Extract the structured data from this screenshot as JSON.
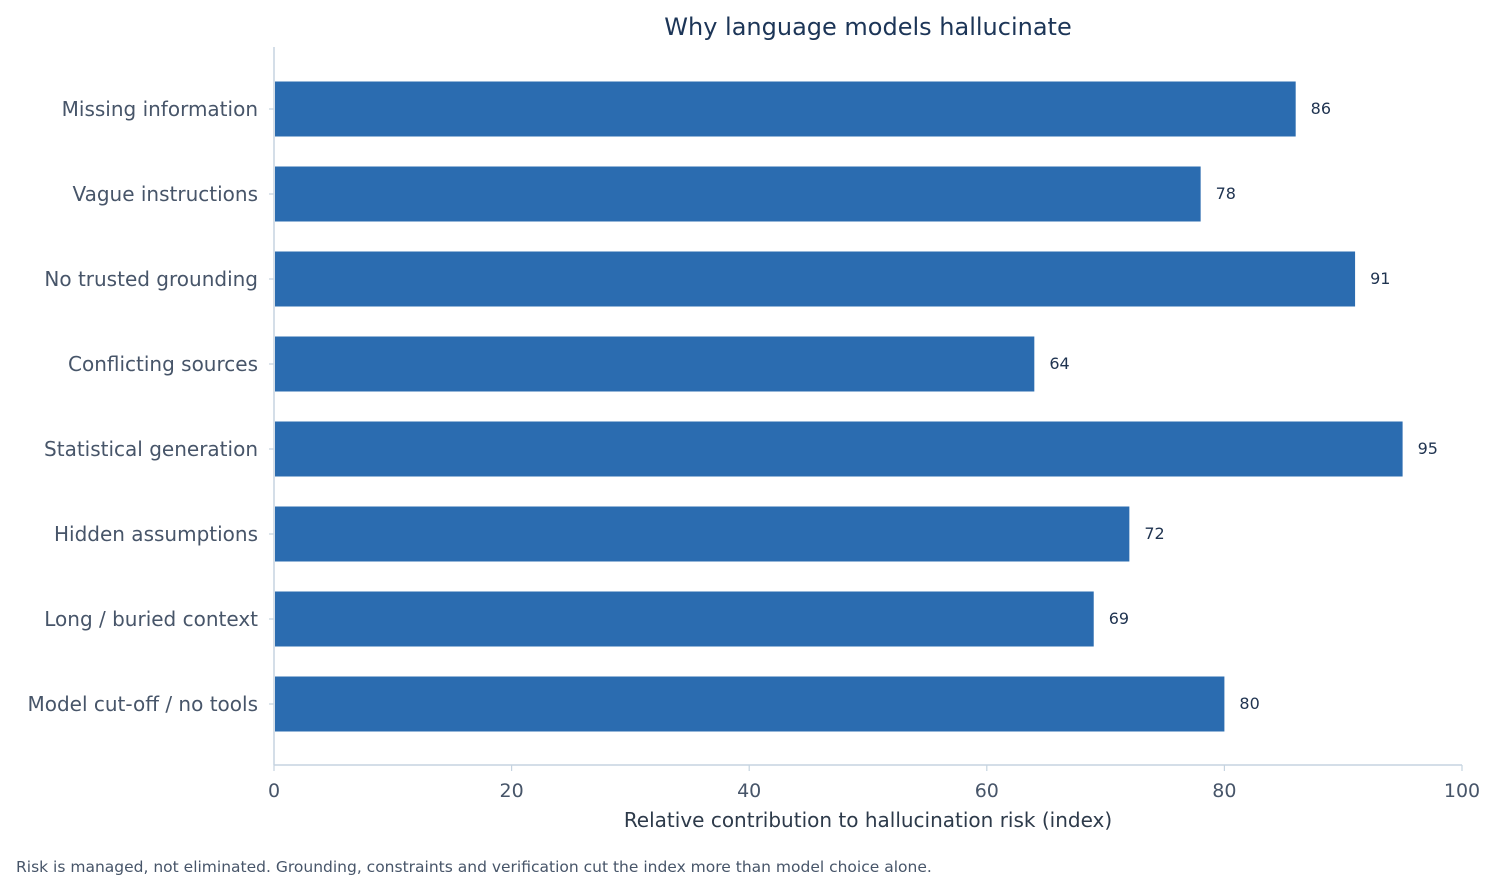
{
  "chart_data": {
    "type": "bar",
    "orientation": "horizontal",
    "title": "Why language models hallucinate",
    "xlabel": "Relative contribution to hallucination risk (index)",
    "ylabel": "",
    "xlim": [
      0,
      100
    ],
    "x_ticks": [
      0,
      20,
      40,
      60,
      80,
      100
    ],
    "categories": [
      "Missing information",
      "Vague instructions",
      "No trusted grounding",
      "Conflicting sources",
      "Statistical generation",
      "Hidden assumptions",
      "Long / buried context",
      "Model cut-off / no tools"
    ],
    "values": [
      86,
      78,
      91,
      64,
      95,
      72,
      69,
      80
    ],
    "data_labels": true,
    "grid": false,
    "legend": "none",
    "bar_color": "#2b6cb0",
    "axis_color": "#c5d3e0"
  },
  "footnote": "Risk is managed, not eliminated. Grounding, constraints and verification cut the index more than model choice alone."
}
